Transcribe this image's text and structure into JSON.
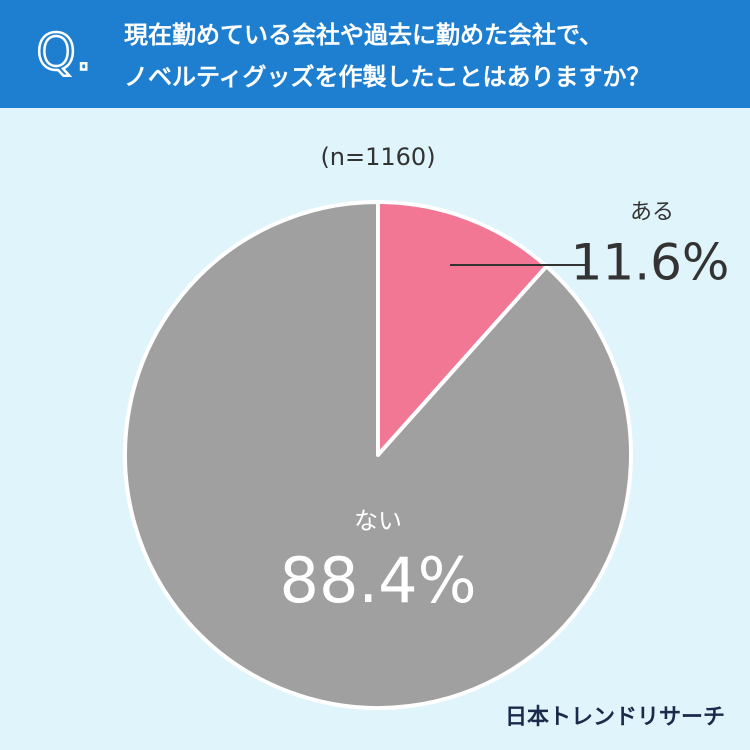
{
  "chart_data": {
    "type": "pie",
    "header_label": "Q.",
    "title": [
      "現在勤めている会社や過去に勤めた会社で、",
      "ノベルティグッズを作製したことはありますか？"
    ],
    "subtitle": "(n=1160)",
    "categories": [
      "ある",
      "ない"
    ],
    "values": [
      11.6,
      88.4
    ],
    "value_labels": [
      "11.6%",
      "88.4%"
    ],
    "colors": [
      "#f27794",
      "#a0a0a0"
    ],
    "source": "日本トレンドリサーチ"
  }
}
